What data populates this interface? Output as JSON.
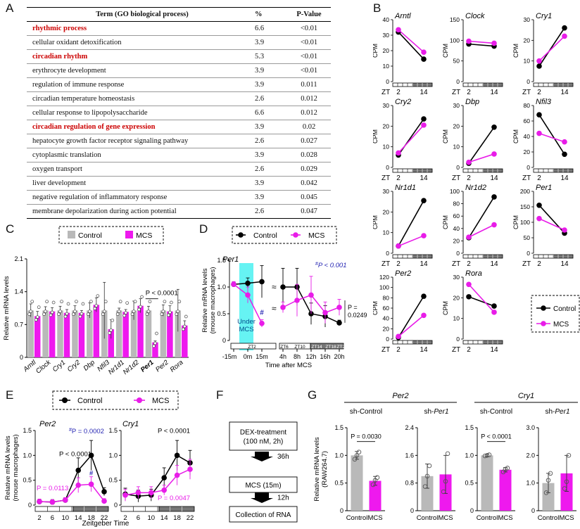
{
  "panels": {
    "A": "A",
    "B": "B",
    "C": "C",
    "D": "D",
    "E": "E",
    "F": "F",
    "G": "G"
  },
  "colors": {
    "control": "#000000",
    "mcs": "#e81ce8",
    "control_bar": "#b9b9b9",
    "mcs_bar": "#ee19ee",
    "highlight": "#cc0000",
    "blue": "#2828b4",
    "cyan": "#40f0f0"
  },
  "table": {
    "headers": [
      "Term (GO biological process)",
      "%",
      "P-Value"
    ],
    "rows": [
      {
        "term": "rhythmic process",
        "pct": "6.6",
        "p": "<0.01",
        "highlight": true
      },
      {
        "term": "cellular oxidant detoxification",
        "pct": "3.9",
        "p": "<0.01",
        "highlight": false
      },
      {
        "term": "circadian rhythm",
        "pct": "5.3",
        "p": "<0.01",
        "highlight": true
      },
      {
        "term": "erythrocyte development",
        "pct": "3.9",
        "p": "<0.01",
        "highlight": false
      },
      {
        "term": "regulation of immune response",
        "pct": "3.9",
        "p": "0.011",
        "highlight": false
      },
      {
        "term": "circadian temperature homeostasis",
        "pct": "2.6",
        "p": "0.012",
        "highlight": false
      },
      {
        "term": "cellular response to lipopolysaccharide",
        "pct": "6.6",
        "p": "0.012",
        "highlight": false
      },
      {
        "term": "circadian regulation of gene expression",
        "pct": "3.9",
        "p": "0.02",
        "highlight": true
      },
      {
        "term": "hepatocyte growth factor receptor signaling pathway",
        "pct": "2.6",
        "p": "0.027",
        "highlight": false
      },
      {
        "term": "cytoplasmic translation",
        "pct": "3.9",
        "p": "0.028",
        "highlight": false
      },
      {
        "term": "oxygen transport",
        "pct": "2.6",
        "p": "0.029",
        "highlight": false
      },
      {
        "term": "liver development",
        "pct": "3.9",
        "p": "0.042",
        "highlight": false
      },
      {
        "term": "negative regulation of inflammatory response",
        "pct": "3.9",
        "p": "0.045",
        "highlight": false
      },
      {
        "term": "membrane depolarization during action potential",
        "pct": "2.6",
        "p": "0.047",
        "highlight": false
      }
    ]
  },
  "chart_data": [
    {
      "panel": "B",
      "type": "line",
      "ylabel": "CPM",
      "xlabel": "ZT",
      "x": [
        2,
        14
      ],
      "legend": [
        "Control",
        "MCS"
      ],
      "genes": [
        {
          "name": "Arntl",
          "yticks": [
            0,
            10,
            20,
            30,
            40
          ],
          "ylim": [
            0,
            40
          ],
          "control": [
            32,
            14.5
          ],
          "mcs": [
            33.5,
            19
          ]
        },
        {
          "name": "Clock",
          "yticks": [
            0,
            50,
            100,
            150
          ],
          "ylim": [
            0,
            150
          ],
          "control": [
            91,
            86
          ],
          "mcs": [
            98,
            93
          ]
        },
        {
          "name": "Cry1",
          "yticks": [
            0,
            10,
            20,
            30
          ],
          "ylim": [
            0,
            30
          ],
          "control": [
            7.5,
            26
          ],
          "mcs": [
            10,
            22
          ]
        },
        {
          "name": "Cry2",
          "yticks": [
            0,
            10,
            20,
            30
          ],
          "ylim": [
            0,
            30
          ],
          "control": [
            6,
            23.5
          ],
          "mcs": [
            7,
            20.5
          ]
        },
        {
          "name": "Dbp",
          "yticks": [
            0,
            10,
            20,
            30
          ],
          "ylim": [
            0,
            30
          ],
          "control": [
            2,
            19.5
          ],
          "mcs": [
            2.5,
            6.5
          ]
        },
        {
          "name": "Nfil3",
          "yticks": [
            0,
            20,
            40,
            60,
            80
          ],
          "ylim": [
            0,
            80
          ],
          "control": [
            68,
            17
          ],
          "mcs": [
            44,
            33
          ]
        },
        {
          "name": "Nr1d1",
          "yticks": [
            0,
            10,
            20,
            30
          ],
          "ylim": [
            0,
            30
          ],
          "control": [
            3.5,
            25.5
          ],
          "mcs": [
            3.5,
            8.5
          ]
        },
        {
          "name": "Nr1d2",
          "yticks": [
            0,
            20,
            40,
            60,
            80,
            100
          ],
          "ylim": [
            0,
            100
          ],
          "control": [
            25,
            91
          ],
          "mcs": [
            26,
            46
          ]
        },
        {
          "name": "Per1",
          "yticks": [
            0,
            50,
            100,
            150,
            200
          ],
          "ylim": [
            0,
            200
          ],
          "control": [
            155,
            65
          ],
          "mcs": [
            112,
            75
          ]
        },
        {
          "name": "Per2",
          "yticks": [
            0,
            20,
            40,
            60,
            80,
            100,
            120
          ],
          "ylim": [
            0,
            120
          ],
          "control": [
            3,
            83
          ],
          "mcs": [
            5,
            46
          ]
        },
        {
          "name": "Rora",
          "yticks": [
            0,
            10,
            20,
            30
          ],
          "ylim": [
            0,
            30
          ],
          "control": [
            20.5,
            16
          ],
          "mcs": [
            26.5,
            13
          ]
        }
      ]
    },
    {
      "panel": "C",
      "type": "bar",
      "ylabel": "Relative mRNA levels",
      "yticks": [
        "0",
        "0.7",
        "1.4",
        "2.1"
      ],
      "ylim": [
        0,
        2.1
      ],
      "categories": [
        "Arntl",
        "Clock",
        "Cry1",
        "Cry2",
        "Dbp",
        "Nfil3",
        "Nr1d1",
        "Nr1d2",
        "Per1",
        "Per2",
        "Rora"
      ],
      "bold_category": "Per1",
      "series": [
        {
          "name": "Control",
          "values": [
            1.0,
            1.0,
            1.0,
            1.0,
            1.0,
            1.0,
            1.0,
            1.0,
            1.0,
            1.0,
            1.0
          ],
          "err": [
            0.14,
            0.08,
            0.09,
            0.1,
            0.16,
            0.6,
            0.05,
            0.2,
            0.09,
            0.12,
            0.45
          ]
        },
        {
          "name": "MCS",
          "values": [
            0.88,
            0.98,
            0.95,
            0.95,
            1.12,
            0.6,
            0.97,
            1.1,
            0.32,
            0.98,
            0.68
          ],
          "err": [
            0.1,
            0.08,
            0.07,
            0.05,
            0.15,
            0.2,
            0.05,
            0.15,
            0.03,
            0.12,
            0.1
          ]
        }
      ],
      "annotation": "P < 0.0001"
    },
    {
      "panel": "D",
      "type": "line",
      "gene": "Per1",
      "ylabel": "Relative mRNA levels\n(mouse macrophages)",
      "xlabel": "Time after MCS",
      "yticks": [
        "0",
        "0.5",
        "1.0",
        "1.5"
      ],
      "ylim": [
        0,
        1.5
      ],
      "x_labels": [
        "-15m",
        "0m",
        "15m",
        "4h",
        "8h",
        "12h",
        "16h",
        "20h"
      ],
      "zt_labels": [
        "ZT2",
        "ZT6",
        "ZT10",
        "ZT14",
        "ZT18",
        "ZT22"
      ],
      "control": [
        1.05,
        1.07,
        1.1,
        1.0,
        1.0,
        0.5,
        0.45,
        0.33
      ],
      "control_err": [
        0.05,
        0.1,
        0.3,
        0.35,
        0.35,
        0.2,
        0.2,
        0.05
      ],
      "mcs": [
        1.05,
        0.85,
        0.32,
        0.62,
        0.75,
        0.85,
        0.52,
        0.62
      ],
      "mcs_err": [
        0.05,
        0.15,
        0.07,
        0.1,
        0.3,
        0.35,
        0.2,
        0.15
      ],
      "under_mcs_label": "Under\nMCS",
      "annotations": {
        "hash": "#",
        "sig_top": "P < 0.001",
        "sig_top_prefix": "#",
        "side": "P =\n0.0249"
      }
    },
    {
      "panel": "E",
      "type": "line",
      "ylabel": "Relative mRNA levels\n(mouse macrophages)",
      "xlabel": "Zeitgeber Time",
      "x": [
        2,
        6,
        10,
        14,
        18,
        22
      ],
      "yticks": [
        "0",
        "0.5",
        "1.0",
        "1.5"
      ],
      "ylim": [
        0,
        1.5
      ],
      "subplots": [
        {
          "name": "Per2",
          "control": [
            0.07,
            0.06,
            0.1,
            0.7,
            1.0,
            0.27
          ],
          "control_err": [
            0.05,
            0.05,
            0.05,
            0.25,
            0.3,
            0.08
          ],
          "mcs": [
            0.07,
            0.06,
            0.1,
            0.4,
            0.42,
            0.08
          ],
          "mcs_err": [
            0.05,
            0.05,
            0.05,
            0.15,
            0.15,
            0.05
          ],
          "ann": {
            "top": "P = 0.0002",
            "top_prefix": "#",
            "mid": "P < 0.0001",
            "hash": "#",
            "low": "P = 0.0113"
          }
        },
        {
          "name": "Cry1",
          "control": [
            0.22,
            0.18,
            0.2,
            0.55,
            1.0,
            0.85
          ],
          "control_err": [
            0.12,
            0.12,
            0.12,
            0.2,
            0.3,
            0.25
          ],
          "mcs": [
            0.2,
            0.25,
            0.25,
            0.3,
            0.6,
            0.72
          ],
          "mcs_err": [
            0.12,
            0.12,
            0.12,
            0.1,
            0.2,
            0.2
          ],
          "ann": {
            "top": "P < 0.0001",
            "low": "P = 0.0047"
          }
        }
      ]
    },
    {
      "panel": "G",
      "type": "bar",
      "ylabel": "Relative mRNA levels\n(RAW264.7)",
      "categories": [
        "Control",
        "MCS"
      ],
      "groups": [
        {
          "gene": "Per2",
          "subplots": [
            {
              "title_prefix": "sh-",
              "title_main": "Control",
              "title_italic": false,
              "yticks": [
                "0",
                "0.5",
                "1.0",
                "1.5"
              ],
              "ylim": [
                0,
                1.5
              ],
              "values": [
                1.0,
                0.54
              ],
              "err": [
                0.07,
                0.08
              ],
              "pts_c": [
                0.93,
                1.0,
                1.06
              ],
              "pts_m": [
                0.47,
                0.55,
                0.6
              ],
              "p": "P = 0.0030"
            },
            {
              "title_prefix": "sh-",
              "title_main": "Per1",
              "title_italic": true,
              "yticks": [
                "0",
                "0.8",
                "1.6",
                "2.4"
              ],
              "ylim": [
                0,
                2.4
              ],
              "values": [
                1.0,
                1.05
              ],
              "err": [
                0.35,
                0.55
              ],
              "pts_c": [
                0.7,
                1.0,
                1.3
              ],
              "pts_m": [
                0.55,
                0.85,
                1.65
              ],
              "p": ""
            }
          ]
        },
        {
          "gene": "Cry1",
          "subplots": [
            {
              "title_prefix": "sh-",
              "title_main": "Control",
              "title_italic": false,
              "yticks": [
                "0",
                "0.5",
                "1.0",
                "1.5"
              ],
              "ylim": [
                0,
                1.5
              ],
              "values": [
                1.0,
                0.74
              ],
              "err": [
                0.02,
                0.04
              ],
              "pts_c": [
                0.99,
                1.0,
                1.01
              ],
              "pts_m": [
                0.7,
                0.75,
                0.77
              ],
              "p": "P < 0.0001"
            },
            {
              "title_prefix": "sh-",
              "title_main": "Per1",
              "title_italic": true,
              "yticks": [
                "0",
                "1.0",
                "2.0",
                "3.0"
              ],
              "ylim": [
                0,
                3.0
              ],
              "values": [
                1.0,
                1.35
              ],
              "err": [
                0.35,
                0.65
              ],
              "pts_c": [
                0.65,
                1.1,
                1.35
              ],
              "pts_m": [
                0.8,
                1.05,
                2.0
              ],
              "p": ""
            }
          ]
        }
      ]
    }
  ],
  "flow": {
    "steps": [
      "DEX-treatment\n(100 nM, 2h)",
      "MCS (15m)",
      "Collection of RNA"
    ],
    "arrows": [
      "36h",
      "12h"
    ]
  },
  "legend": {
    "control": "Control",
    "mcs": "MCS"
  }
}
